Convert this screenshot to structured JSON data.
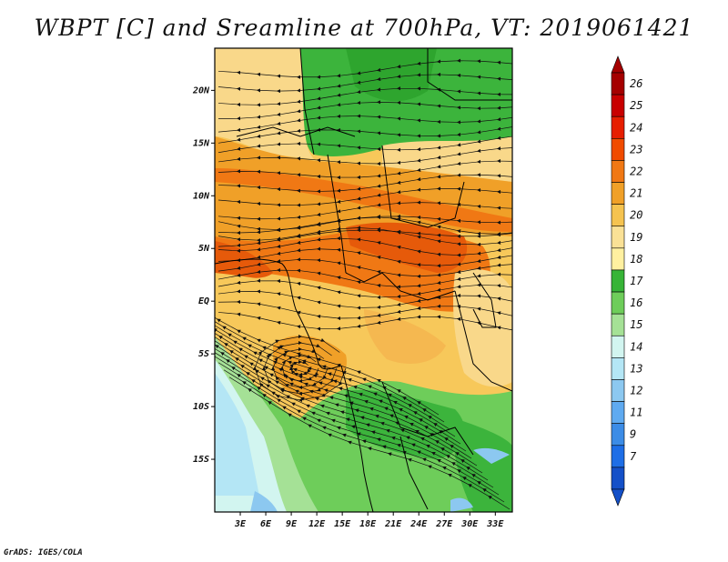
{
  "title": "WBPT [C] and Sreamline at 700hPa, VT: 2019061421",
  "credit": "GrADS: IGES/COLA",
  "map": {
    "lon_range": [
      0,
      35
    ],
    "lat_range": [
      -20,
      24
    ],
    "lon_ticks": [
      {
        "value": 3,
        "label": "3E"
      },
      {
        "value": 6,
        "label": "6E"
      },
      {
        "value": 9,
        "label": "9E"
      },
      {
        "value": 12,
        "label": "12E"
      },
      {
        "value": 15,
        "label": "15E"
      },
      {
        "value": 18,
        "label": "18E"
      },
      {
        "value": 21,
        "label": "21E"
      },
      {
        "value": 24,
        "label": "24E"
      },
      {
        "value": 27,
        "label": "27E"
      },
      {
        "value": 30,
        "label": "30E"
      },
      {
        "value": 33,
        "label": "33E"
      }
    ],
    "lat_ticks": [
      {
        "value": 20,
        "label": "20N"
      },
      {
        "value": 15,
        "label": "15N"
      },
      {
        "value": 10,
        "label": "10N"
      },
      {
        "value": 5,
        "label": "5N"
      },
      {
        "value": 0,
        "label": "EQ"
      },
      {
        "value": -5,
        "label": "5S"
      },
      {
        "value": -10,
        "label": "10S"
      },
      {
        "value": -15,
        "label": "15S"
      }
    ]
  },
  "colorbar": {
    "labels": [
      "26",
      "25",
      "24",
      "23",
      "22",
      "21",
      "20",
      "19",
      "18",
      "17",
      "16",
      "15",
      "14",
      "13",
      "12",
      "11",
      "9",
      "7"
    ],
    "colors": [
      "#a50000",
      "#c80000",
      "#e61e00",
      "#f04b00",
      "#f07814",
      "#f0a028",
      "#f5c350",
      "#fae196",
      "#fff0a0",
      "#37b437",
      "#6ecd5a",
      "#a5e196",
      "#d2f5f0",
      "#b4e6f5",
      "#8cc8f0",
      "#5faaf0",
      "#3c8ce6",
      "#1e6ee6",
      "#1450c8"
    ]
  }
}
